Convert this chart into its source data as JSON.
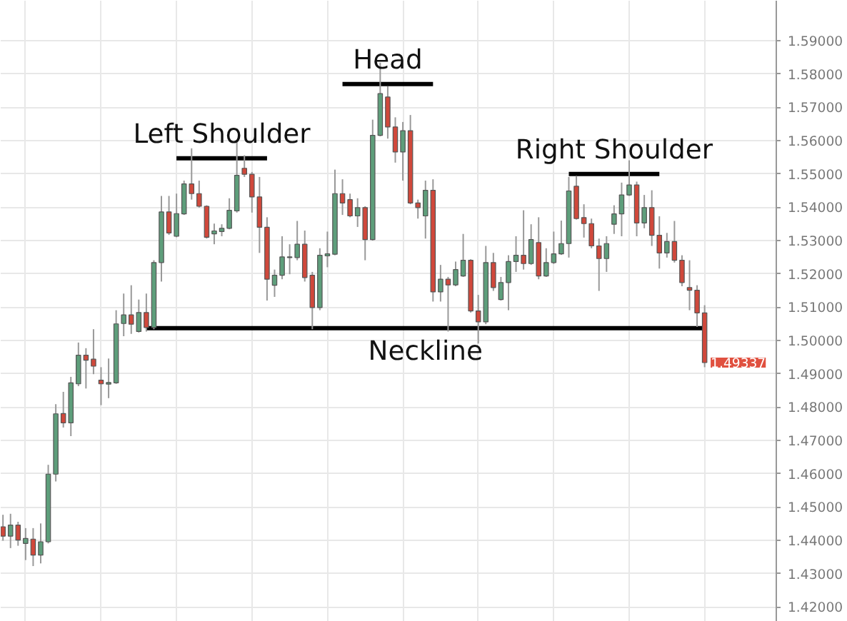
{
  "chart_data": {
    "type": "candlestick",
    "categories": [
      null,
      null,
      null,
      null,
      null,
      null,
      null,
      null,
      null,
      null,
      null,
      null,
      null,
      null,
      null,
      null,
      null,
      null,
      null,
      null,
      null,
      null,
      null,
      null,
      null,
      null,
      null,
      null,
      null,
      null,
      null,
      null,
      null,
      null,
      null,
      null,
      null,
      null,
      null,
      null,
      null,
      null,
      null,
      null,
      null,
      null,
      null,
      null,
      null,
      null,
      null,
      null,
      null,
      null,
      null,
      null,
      null,
      null,
      null,
      null,
      null,
      null,
      null,
      null,
      null,
      null,
      null,
      null,
      null,
      null,
      null,
      null,
      null,
      null,
      null,
      null,
      null,
      null,
      null,
      null,
      null,
      null,
      null,
      null,
      null,
      null,
      null,
      null,
      null,
      null,
      null,
      null,
      null,
      null
    ],
    "ohlc": [
      [
        1.4441,
        1.4477,
        1.4399,
        1.4413
      ],
      [
        1.4413,
        1.448,
        1.4377,
        1.4446
      ],
      [
        1.4446,
        1.4456,
        1.4384,
        1.4401
      ],
      [
        1.4391,
        1.4437,
        1.4341,
        1.4406
      ],
      [
        1.4404,
        1.4437,
        1.4323,
        1.4356
      ],
      [
        1.4356,
        1.4451,
        1.4331,
        1.4396
      ],
      [
        1.4396,
        1.4627,
        1.4391,
        1.4599
      ],
      [
        1.4599,
        1.4809,
        1.4577,
        1.478
      ],
      [
        1.4781,
        1.4846,
        1.4739,
        1.4753
      ],
      [
        1.4753,
        1.4891,
        1.4713,
        1.4873
      ],
      [
        1.487,
        1.4994,
        1.4863,
        1.4956
      ],
      [
        1.4956,
        1.4977,
        1.4856,
        1.4941
      ],
      [
        1.4944,
        1.5034,
        1.4899,
        1.4923
      ],
      [
        1.4881,
        1.492,
        1.4806,
        1.487
      ],
      [
        1.4869,
        1.4946,
        1.4827,
        1.4874
      ],
      [
        1.4873,
        1.5091,
        1.487,
        1.505
      ],
      [
        1.5051,
        1.5141,
        1.5013,
        1.5077
      ],
      [
        1.5077,
        1.5166,
        1.502,
        1.5049
      ],
      [
        1.5027,
        1.5123,
        1.5024,
        1.5084
      ],
      [
        1.5084,
        1.5141,
        1.5027,
        1.5039
      ],
      [
        1.5039,
        1.5241,
        1.5034,
        1.5234
      ],
      [
        1.5234,
        1.5434,
        1.5177,
        1.5386
      ],
      [
        1.5386,
        1.5434,
        1.5317,
        1.5323
      ],
      [
        1.5313,
        1.5441,
        1.531,
        1.5381
      ],
      [
        1.538,
        1.548,
        1.5377,
        1.547
      ],
      [
        1.547,
        1.5577,
        1.5423,
        1.5441
      ],
      [
        1.5441,
        1.548,
        1.5399,
        1.5403
      ],
      [
        1.5403,
        1.5406,
        1.5306,
        1.531
      ],
      [
        1.532,
        1.5351,
        1.5289,
        1.5329
      ],
      [
        1.5327,
        1.5349,
        1.5313,
        1.5337
      ],
      [
        1.5337,
        1.5427,
        1.5334,
        1.5391
      ],
      [
        1.5389,
        1.5599,
        1.5384,
        1.5496
      ],
      [
        1.5517,
        1.5556,
        1.5491,
        1.5499
      ],
      [
        1.5499,
        1.5506,
        1.5384,
        1.5431
      ],
      [
        1.5431,
        1.5491,
        1.5263,
        1.534
      ],
      [
        1.534,
        1.537,
        1.512,
        1.5184
      ],
      [
        1.5166,
        1.5213,
        1.5131,
        1.5196
      ],
      [
        1.5196,
        1.5313,
        1.5184,
        1.5251
      ],
      [
        1.5249,
        1.5289,
        1.5199,
        1.5251
      ],
      [
        1.5249,
        1.5359,
        1.5241,
        1.5289
      ],
      [
        1.5289,
        1.533,
        1.5177,
        1.5189
      ],
      [
        1.5196,
        1.5206,
        1.5034,
        1.5099
      ],
      [
        1.5099,
        1.5277,
        1.5091,
        1.5256
      ],
      [
        1.5254,
        1.5327,
        1.522,
        1.526
      ],
      [
        1.5259,
        1.5513,
        1.5256,
        1.5441
      ],
      [
        1.5441,
        1.5484,
        1.5377,
        1.5413
      ],
      [
        1.5423,
        1.5441,
        1.537,
        1.5374
      ],
      [
        1.5374,
        1.5427,
        1.5341,
        1.5399
      ],
      [
        1.5399,
        1.5403,
        1.5241,
        1.5303
      ],
      [
        1.5303,
        1.5663,
        1.53,
        1.5616
      ],
      [
        1.5616,
        1.5834,
        1.5613,
        1.5741
      ],
      [
        1.5731,
        1.5763,
        1.5606,
        1.5641
      ],
      [
        1.5641,
        1.567,
        1.5534,
        1.5566
      ],
      [
        1.5566,
        1.5656,
        1.548,
        1.563
      ],
      [
        1.563,
        1.5677,
        1.5409,
        1.5413
      ],
      [
        1.5413,
        1.5423,
        1.5366,
        1.5399
      ],
      [
        1.5374,
        1.548,
        1.5306,
        1.5451
      ],
      [
        1.5451,
        1.5484,
        1.5117,
        1.5146
      ],
      [
        1.5146,
        1.5227,
        1.5117,
        1.5184
      ],
      [
        1.5184,
        1.5191,
        1.5027,
        1.5167
      ],
      [
        1.5167,
        1.5237,
        1.5163,
        1.5213
      ],
      [
        1.5194,
        1.532,
        1.5191,
        1.5241
      ],
      [
        1.5241,
        1.5244,
        1.5084,
        1.5089
      ],
      [
        1.5089,
        1.5137,
        1.4991,
        1.5056
      ],
      [
        1.5056,
        1.5284,
        1.5049,
        1.5234
      ],
      [
        1.5234,
        1.5263,
        1.5149,
        1.5159
      ],
      [
        1.5123,
        1.5191,
        1.512,
        1.5174
      ],
      [
        1.5174,
        1.5256,
        1.5091,
        1.5237
      ],
      [
        1.5237,
        1.5313,
        1.5206,
        1.5256
      ],
      [
        1.5256,
        1.5391,
        1.5213,
        1.5231
      ],
      [
        1.5231,
        1.5349,
        1.5227,
        1.5303
      ],
      [
        1.5294,
        1.537,
        1.5184,
        1.5194
      ],
      [
        1.5194,
        1.5277,
        1.5191,
        1.5234
      ],
      [
        1.5234,
        1.5327,
        1.523,
        1.526
      ],
      [
        1.526,
        1.536,
        1.5257,
        1.5291
      ],
      [
        1.5291,
        1.5491,
        1.5249,
        1.5449
      ],
      [
        1.5463,
        1.5494,
        1.5363,
        1.5366
      ],
      [
        1.5369,
        1.5409,
        1.5309,
        1.5351
      ],
      [
        1.5351,
        1.5366,
        1.5277,
        1.5284
      ],
      [
        1.5284,
        1.5306,
        1.5149,
        1.5246
      ],
      [
        1.5246,
        1.5313,
        1.5206,
        1.5291
      ],
      [
        1.5349,
        1.5406,
        1.532,
        1.538
      ],
      [
        1.538,
        1.5474,
        1.5313,
        1.5437
      ],
      [
        1.5437,
        1.5541,
        1.5434,
        1.5467
      ],
      [
        1.5467,
        1.5477,
        1.5313,
        1.5353
      ],
      [
        1.5353,
        1.5437,
        1.5337,
        1.5399
      ],
      [
        1.5399,
        1.5451,
        1.5284,
        1.5316
      ],
      [
        1.5316,
        1.5373,
        1.5216,
        1.5263
      ],
      [
        1.5263,
        1.5323,
        1.5249,
        1.5297
      ],
      [
        1.5297,
        1.5359,
        1.5234,
        1.5241
      ],
      [
        1.5241,
        1.5256,
        1.5163,
        1.5174
      ],
      [
        1.5159,
        1.5241,
        1.5091,
        1.5151
      ],
      [
        1.5151,
        1.5166,
        1.5041,
        1.5083
      ],
      [
        1.5083,
        1.5106,
        1.492,
        1.49337
      ]
    ],
    "colors": [
      "#d0483b",
      "#5e9e7b",
      "#d0483b",
      "#5e9e7b",
      "#d0483b",
      "#5e9e7b",
      "#5e9e7b",
      "#5e9e7b",
      "#d0483b",
      "#5e9e7b",
      "#5e9e7b",
      "#d0483b",
      "#d0483b",
      "#d0483b",
      "#5e9e7b",
      "#5e9e7b",
      "#5e9e7b",
      "#d0483b",
      "#5e9e7b",
      "#d0483b",
      "#5e9e7b",
      "#5e9e7b",
      "#d0483b",
      "#5e9e7b",
      "#5e9e7b",
      "#d0483b",
      "#d0483b",
      "#d0483b",
      "#5e9e7b",
      "#5e9e7b",
      "#5e9e7b",
      "#5e9e7b",
      "#d0483b",
      "#d0483b",
      "#d0483b",
      "#d0483b",
      "#5e9e7b",
      "#5e9e7b",
      "#5e9e7b",
      "#5e9e7b",
      "#d0483b",
      "#d0483b",
      "#5e9e7b",
      "#5e9e7b",
      "#5e9e7b",
      "#d0483b",
      "#d0483b",
      "#5e9e7b",
      "#d0483b",
      "#5e9e7b",
      "#5e9e7b",
      "#d0483b",
      "#d0483b",
      "#5e9e7b",
      "#d0483b",
      "#d0483b",
      "#5e9e7b",
      "#d0483b",
      "#5e9e7b",
      "#d0483b",
      "#5e9e7b",
      "#5e9e7b",
      "#d0483b",
      "#d0483b",
      "#5e9e7b",
      "#d0483b",
      "#5e9e7b",
      "#5e9e7b",
      "#5e9e7b",
      "#d0483b",
      "#5e9e7b",
      "#d0483b",
      "#5e9e7b",
      "#5e9e7b",
      "#5e9e7b",
      "#5e9e7b",
      "#d0483b",
      "#d0483b",
      "#d0483b",
      "#d0483b",
      "#5e9e7b",
      "#5e9e7b",
      "#5e9e7b",
      "#5e9e7b",
      "#d0483b",
      "#5e9e7b",
      "#d0483b",
      "#d0483b",
      "#5e9e7b",
      "#d0483b",
      "#d0483b",
      "#d0483b",
      "#d0483b",
      "#d0483b"
    ],
    "series": [
      {
        "type": "line",
        "color": "#000000",
        "values": [
          null,
          null,
          null,
          null,
          null,
          null,
          null,
          null,
          null,
          null,
          null,
          null,
          null,
          null,
          null,
          null,
          null,
          null,
          null,
          null,
          null,
          null,
          null,
          1.5547,
          1.5547,
          1.5547,
          1.5547,
          1.5547,
          1.5547,
          1.5547,
          1.5547,
          1.5547,
          1.5547,
          1.5547,
          1.5547,
          1.5547,
          null,
          null,
          null,
          null,
          null,
          null,
          null,
          null,
          null,
          null,
          null,
          null,
          null,
          null,
          null,
          null,
          null,
          null,
          null,
          null,
          null,
          null,
          null,
          null,
          null,
          null,
          null,
          null,
          null,
          null,
          null,
          null,
          null,
          null,
          null,
          null,
          null,
          null,
          null,
          null,
          null,
          null,
          null,
          null,
          null,
          null,
          null,
          null,
          null,
          null,
          null,
          null,
          null,
          null,
          null,
          null,
          null,
          null
        ]
      },
      {
        "type": "line",
        "color": "#000000",
        "values": [
          null,
          null,
          null,
          null,
          null,
          null,
          null,
          null,
          null,
          null,
          null,
          null,
          null,
          null,
          null,
          null,
          null,
          null,
          null,
          null,
          null,
          null,
          null,
          null,
          null,
          null,
          null,
          null,
          null,
          null,
          null,
          null,
          null,
          null,
          null,
          null,
          null,
          null,
          null,
          null,
          null,
          null,
          null,
          null,
          null,
          1.577,
          1.577,
          1.577,
          1.577,
          1.577,
          1.577,
          1.577,
          1.577,
          1.577,
          1.577,
          1.577,
          1.577,
          1.577,
          null,
          null,
          null,
          null,
          null,
          null,
          null,
          null,
          null,
          null,
          null,
          null,
          null,
          null,
          null,
          null,
          null,
          null,
          null,
          null,
          null,
          null,
          null,
          null,
          null,
          null,
          null,
          null,
          null,
          null,
          null,
          null,
          null,
          null,
          null,
          null
        ]
      },
      {
        "type": "line",
        "color": "#000000",
        "values": [
          null,
          null,
          null,
          null,
          null,
          null,
          null,
          null,
          null,
          null,
          null,
          null,
          null,
          null,
          null,
          null,
          null,
          null,
          null,
          null,
          null,
          null,
          null,
          null,
          null,
          null,
          null,
          null,
          null,
          null,
          null,
          null,
          null,
          null,
          null,
          null,
          null,
          null,
          null,
          null,
          null,
          null,
          null,
          null,
          null,
          null,
          null,
          null,
          null,
          null,
          null,
          null,
          null,
          null,
          null,
          null,
          null,
          null,
          null,
          null,
          null,
          null,
          null,
          null,
          null,
          null,
          null,
          null,
          null,
          null,
          null,
          null,
          null,
          null,
          null,
          1.55,
          1.55,
          1.55,
          1.55,
          1.55,
          1.55,
          1.55,
          1.55,
          1.55,
          1.55,
          1.55,
          1.55,
          1.55,
          null,
          null,
          null,
          null,
          null,
          null
        ]
      },
      {
        "type": "line",
        "color": "#000000",
        "values": [
          null,
          null,
          null,
          null,
          null,
          null,
          null,
          null,
          null,
          null,
          null,
          null,
          null,
          null,
          null,
          null,
          null,
          null,
          null,
          1.5037,
          1.5037,
          1.5037,
          1.5037,
          1.5037,
          1.5037,
          1.5037,
          1.5037,
          1.5037,
          1.5037,
          1.5037,
          1.5037,
          1.5037,
          1.5037,
          1.5037,
          1.5037,
          1.5037,
          1.5037,
          1.5037,
          1.5037,
          1.5037,
          1.5037,
          1.5037,
          1.5037,
          1.5037,
          1.5037,
          1.5037,
          1.5037,
          1.5037,
          1.5037,
          1.5037,
          1.5037,
          1.5037,
          1.5037,
          1.5037,
          1.5037,
          1.5037,
          1.5037,
          1.5037,
          1.5037,
          1.5037,
          1.5037,
          1.5037,
          1.5037,
          1.5037,
          1.5037,
          1.5037,
          1.5037,
          1.5037,
          1.5037,
          1.5037,
          1.5037,
          1.5037,
          1.5037,
          1.5037,
          1.5037,
          1.5037,
          1.5037,
          1.5037,
          1.5037,
          1.5037,
          1.5037,
          1.5037,
          1.5037,
          1.5037,
          1.5037,
          1.5037,
          1.5037,
          1.5037,
          1.5037,
          1.5037,
          1.5037,
          1.5037,
          1.5037,
          1.5037
        ]
      }
    ],
    "annotations": [
      "Left Shoulder",
      "Head",
      "Right Shoulder",
      "Neckline",
      "1.49337"
    ],
    "ylim": [
      1.4156,
      1.602
    ],
    "yticks": [
      {
        "value": 1.42,
        "label": "1.42000"
      },
      {
        "value": 1.43,
        "label": "1.43000"
      },
      {
        "value": 1.44,
        "label": "1.44000"
      },
      {
        "value": 1.45,
        "label": "1.45000"
      },
      {
        "value": 1.46,
        "label": "1.46000"
      },
      {
        "value": 1.47,
        "label": "1.47000"
      },
      {
        "value": 1.48,
        "label": "1.48000"
      },
      {
        "value": 1.49,
        "label": "1.49000"
      },
      {
        "value": 1.5,
        "label": "1.50000"
      },
      {
        "value": 1.51,
        "label": "1.51000"
      },
      {
        "value": 1.52,
        "label": "1.52000"
      },
      {
        "value": 1.53,
        "label": "1.53000"
      },
      {
        "value": 1.54,
        "label": "1.54000"
      },
      {
        "value": 1.55,
        "label": "1.55000"
      },
      {
        "value": 1.56,
        "label": "1.56000"
      },
      {
        "value": 1.57,
        "label": "1.57000"
      },
      {
        "value": 1.58,
        "label": "1.58000"
      },
      {
        "value": 1.59,
        "label": "1.59000"
      }
    ],
    "grid": true,
    "tick_labels": "y"
  }
}
